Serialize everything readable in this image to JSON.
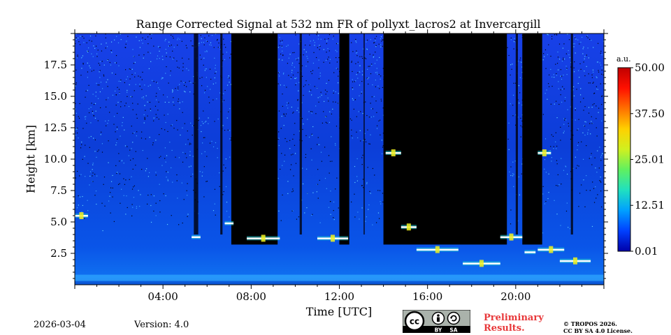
{
  "header": {
    "title": "Range Corrected Signal at 532 nm FR of pollyxt_lacros2 at Invercargill"
  },
  "colorbar": {
    "unit": "a.u.",
    "ticks": [
      "50.00",
      "37.50",
      "25.01",
      "12.51",
      "0.01"
    ],
    "tick_values": [
      50.0,
      37.5,
      25.01,
      12.51,
      0.01
    ],
    "colors": [
      "#0000a8",
      "#0040ff",
      "#00a0ff",
      "#20e0c0",
      "#60f060",
      "#d0f020",
      "#ffd000",
      "#ff7000",
      "#ff1000",
      "#c00000"
    ]
  },
  "footer": {
    "date": "2026-03-04",
    "version": "Version: 4.0",
    "preliminary": "Preliminary Results.",
    "copyright_line1": "© TROPOS 2026.",
    "copyright_line2": "CC BY SA 4.0 License.",
    "license_logo": {
      "cc": "cc",
      "by": "BY",
      "sa": "SA"
    }
  },
  "chart_data": {
    "type": "heatmap",
    "title": "Range Corrected Signal at 532 nm FR of pollyxt_lacros2 at Invercargill",
    "xlabel": "Time [UTC]",
    "ylabel": "Height [km]",
    "xlim": [
      0,
      24
    ],
    "ylim": [
      0,
      20
    ],
    "x_ticks": [
      4,
      8,
      12,
      16,
      20
    ],
    "x_tick_labels": [
      "04:00",
      "08:00",
      "12:00",
      "16:00",
      "20:00"
    ],
    "y_ticks": [
      2.5,
      5.0,
      7.5,
      10.0,
      12.5,
      15.0,
      17.5
    ],
    "y_tick_labels": [
      "2.5",
      "5.0",
      "7.5",
      "10.0",
      "12.5",
      "15.0",
      "17.5"
    ],
    "clim": [
      0.01,
      50.0
    ],
    "no_data_bands_hours": [
      [
        7.1,
        9.2
      ],
      [
        12.0,
        12.45
      ],
      [
        14.0,
        19.6
      ],
      [
        20.3,
        21.2
      ]
    ],
    "cloud_features": [
      {
        "time_start": 0.0,
        "time_end": 0.6,
        "height_km": 5.5
      },
      {
        "time_start": 5.3,
        "time_end": 5.7,
        "height_km": 3.8
      },
      {
        "time_start": 6.8,
        "time_end": 7.2,
        "height_km": 4.9
      },
      {
        "time_start": 7.8,
        "time_end": 9.3,
        "height_km": 3.7
      },
      {
        "time_start": 11.0,
        "time_end": 12.4,
        "height_km": 3.7
      },
      {
        "time_start": 14.1,
        "time_end": 14.8,
        "height_km": 10.5
      },
      {
        "time_start": 14.8,
        "time_end": 15.5,
        "height_km": 4.6
      },
      {
        "time_start": 15.5,
        "time_end": 17.4,
        "height_km": 2.8
      },
      {
        "time_start": 17.6,
        "time_end": 19.3,
        "height_km": 1.7
      },
      {
        "time_start": 19.3,
        "time_end": 20.3,
        "height_km": 3.8
      },
      {
        "time_start": 20.4,
        "time_end": 20.9,
        "height_km": 2.6
      },
      {
        "time_start": 21.0,
        "time_end": 21.6,
        "height_km": 10.5
      },
      {
        "time_start": 21.0,
        "time_end": 22.2,
        "height_km": 2.8
      },
      {
        "time_start": 22.0,
        "time_end": 23.4,
        "height_km": 1.9
      }
    ]
  }
}
